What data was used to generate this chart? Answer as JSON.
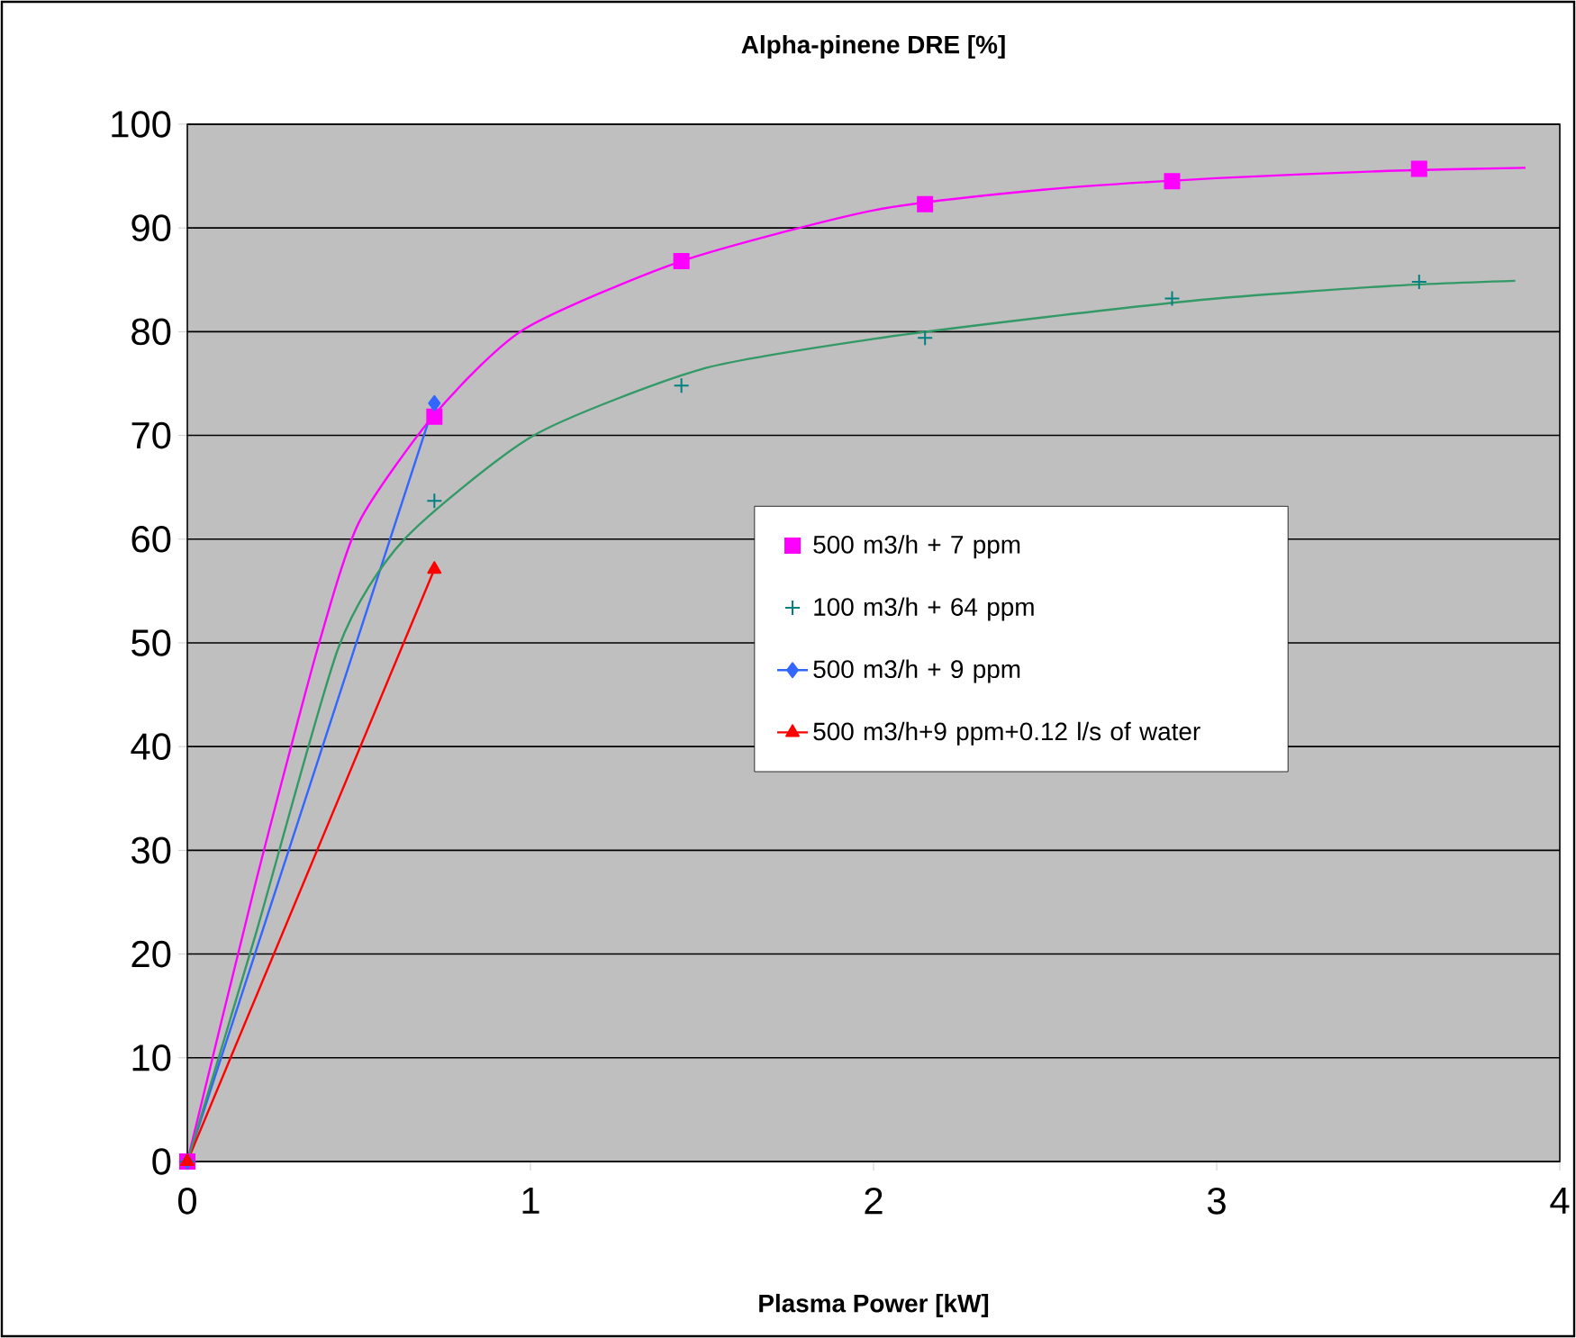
{
  "chart_data": {
    "type": "scatter",
    "title": "Alpha-pinene DRE [%]",
    "xlabel": "Plasma Power [kW]",
    "xlim": [
      0,
      4
    ],
    "xticks": [
      0,
      1,
      2,
      3,
      4
    ],
    "ylim": [
      0,
      100
    ],
    "yticks": [
      0,
      10,
      20,
      30,
      40,
      50,
      60,
      70,
      80,
      90,
      100
    ],
    "grid": "y",
    "legend": "right",
    "series": [
      {
        "name": "500 m3/h + 7 ppm",
        "marker": "square",
        "color": "#ff00ff",
        "x": [
          0,
          0.72,
          1.44,
          2.15,
          2.87,
          3.59
        ],
        "values": [
          0,
          71.8,
          86.8,
          92.3,
          94.5,
          95.7
        ]
      },
      {
        "name": "100 m3/h + 64 ppm",
        "marker": "cross",
        "color": "#008080",
        "x": [
          0,
          0.72,
          1.44,
          2.15,
          2.87,
          3.59
        ],
        "values": [
          0,
          63.7,
          74.8,
          79.4,
          83.2,
          84.8
        ]
      },
      {
        "name": "500 m3/h + 9 ppm",
        "type": "line",
        "marker": "diamond",
        "color": "#3366ff",
        "x": [
          0,
          0.72
        ],
        "values": [
          0,
          73.1
        ]
      },
      {
        "name": "500 m3/h+9 ppm+0.12 l/s of water",
        "type": "line",
        "marker": "triangle",
        "color": "#ff0000",
        "x": [
          0,
          0.72
        ],
        "values": [
          0,
          57.1
        ]
      },
      {
        "type": "line",
        "marker": "none",
        "color": "#ff00ff",
        "x": [
          0,
          0.2,
          0.38,
          0.5,
          0.72,
          0.98,
          1.44,
          2,
          2.5,
          3,
          3.5,
          3.9
        ],
        "values": [
          0,
          27,
          49.5,
          61.6,
          72,
          80.2,
          86.8,
          91.7,
          93.7,
          94.8,
          95.5,
          95.8
        ]
      },
      {
        "type": "line",
        "marker": "none",
        "color": "#339966",
        "x": [
          0,
          0.2,
          0.44,
          0.63,
          1.01,
          1.5,
          2,
          2.5,
          3,
          3.5,
          3.87
        ],
        "values": [
          0,
          22,
          49.5,
          59.9,
          70,
          76.4,
          79.3,
          81.4,
          83.2,
          84.4,
          84.9
        ]
      }
    ]
  }
}
